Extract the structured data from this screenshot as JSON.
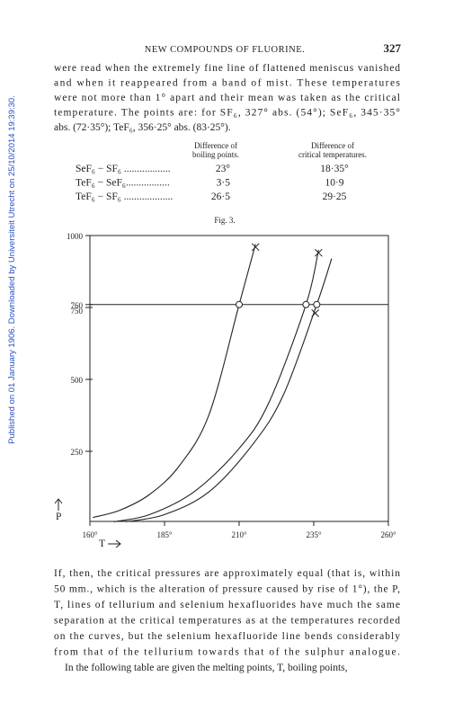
{
  "header": {
    "title": "NEW COMPOUNDS OF FLUORINE.",
    "page": "327"
  },
  "side_note": "Published on 01 January 1906. Downloaded by Universiteit Utrecht on 25/10/2014 19:39:30.",
  "paragraph1": [
    "were read when the extremely fine line of flattened meniscus vanished",
    "and when it reappeared from a band of mist.  These temperatures",
    "were not more than 1° apart and their mean was taken as the critical",
    "temperature.  The points are: for SF₆, 327° abs. (54°); SeF₆, 345·35°",
    "abs. (72·35°); TeF₆, 356·25° abs. (83·25°)."
  ],
  "table": {
    "headers": [
      [
        "Difference of",
        "boiling points."
      ],
      [
        "Difference of",
        "critical temperatures."
      ]
    ],
    "rows": [
      [
        "SeF₆ − SF₆ ..................",
        "23°",
        "18·35°"
      ],
      [
        "TeF₆ − SeF₆.................",
        "3·5",
        "10·9"
      ],
      [
        "TeF₆ − SF₆ ...................",
        "26·5",
        "29·25"
      ]
    ]
  },
  "figure": {
    "caption": "Fig. 3.",
    "ylabel": "P",
    "xlabel": "T",
    "xlim": [
      160,
      260
    ],
    "ylim": [
      0,
      1000
    ],
    "xticks": [
      {
        "value": 160,
        "label": "160°"
      },
      {
        "value": 185,
        "label": "185°"
      },
      {
        "value": 210,
        "label": "210°"
      },
      {
        "value": 235,
        "label": "235°"
      },
      {
        "value": 260,
        "label": "260°"
      }
    ],
    "yticks": [
      1000,
      760,
      750,
      500,
      250
    ],
    "hline": 760,
    "curves": [
      {
        "x": [
          161,
          170,
          180,
          190,
          200,
          210,
          215.5
        ],
        "y": [
          20,
          45,
          100,
          200,
          380,
          760,
          970
        ]
      },
      {
        "x": [
          168,
          180,
          195,
          210,
          220,
          232.4,
          236.6
        ],
        "y": [
          5,
          30,
          110,
          260,
          420,
          760,
          950
        ]
      },
      {
        "x": [
          172,
          185,
          200,
          215,
          225,
          236,
          241
        ],
        "y": [
          5,
          30,
          110,
          280,
          450,
          760,
          920
        ]
      }
    ],
    "circles": {
      "x": [
        210,
        232.4,
        236
      ],
      "y": [
        760,
        760,
        760
      ]
    },
    "crosses": {
      "x": [
        215.5,
        236.6,
        235.5
      ],
      "y": [
        960,
        940,
        730
      ]
    }
  },
  "paragraph2": [
    "If, then, the critical pressures are approximately equal (that is, within",
    "50 mm., which is the alteration of pressure caused by rise of 1°), the P,",
    "T, lines of tellurium and selenium hexafluorides have much the same",
    "separation at the critical temperatures as at the temperatures recorded",
    "on the curves, but the selenium hexafluoride line bends considerably",
    "from that of the tellurium towards that of the sulphur analogue.",
    "In the following table are given the melting points, T, boiling points,"
  ]
}
